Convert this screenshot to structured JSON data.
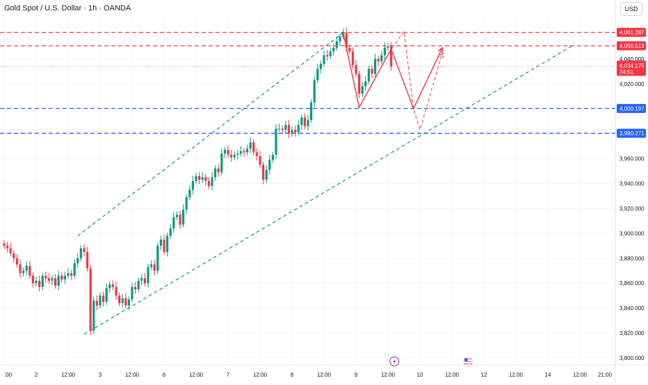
{
  "header": {
    "title": "Gold Spot / U.S. Dollar · 1h · OANDA",
    "currency": "USD"
  },
  "chart_data": {
    "type": "candlestick",
    "y_axis": {
      "range": [
        3795,
        4075
      ],
      "ticks": [
        "3,800.000",
        "3,820.000",
        "3,840.000",
        "3,860.000",
        "3,880.000",
        "3,900.000",
        "3,920.000",
        "3,940.000",
        "3,960.000",
        "3,980.000",
        "4,000.000",
        "4,020.000",
        "4,040.000"
      ],
      "tick_values": [
        3800,
        3820,
        3840,
        3860,
        3880,
        3900,
        3920,
        3940,
        3960,
        3980,
        4000,
        4020,
        4040
      ]
    },
    "x_axis": {
      "ticks": [
        ":00",
        "2",
        "12:00",
        "3",
        "12:00",
        "6",
        "12:00",
        "7",
        "12:00",
        "8",
        "12:00",
        "9",
        "12:00",
        "10",
        "12:00",
        "12",
        "12:00",
        "14",
        "12:00",
        "21:00"
      ],
      "tick_index": [
        0,
        10,
        20,
        30,
        40,
        50,
        60,
        70,
        80,
        90,
        100,
        110,
        120,
        130,
        140,
        150,
        160,
        170,
        180,
        190
      ],
      "bar_range": [
        0,
        192
      ]
    },
    "price_lines": [
      {
        "value": 4061.287,
        "label": "4,061.287",
        "color": "#f23645",
        "style": "dashed"
      },
      {
        "value": 4050.513,
        "label": "4,050.513",
        "color": "#f23645",
        "style": "dashed"
      },
      {
        "value": 4000.197,
        "label": "4,000.197",
        "color": "#2962ff",
        "style": "dashed"
      },
      {
        "value": 3980.271,
        "label": "3,980.271",
        "color": "#2962ff",
        "style": "dashed"
      }
    ],
    "current_price": {
      "value": 4034.175,
      "label": "4,034.175",
      "countdown": "34:51",
      "color": "#f23645"
    },
    "channel": {
      "color": "#089981",
      "upper": [
        [
          23,
          3898
        ],
        [
          106,
          4061
        ]
      ],
      "lower": [
        [
          25,
          3819
        ],
        [
          178,
          4051
        ]
      ]
    },
    "projection_solid": [
      [
        106,
        4061
      ],
      [
        111,
        4001
      ],
      [
        121,
        4048
      ],
      [
        128,
        4000
      ],
      [
        137,
        4049
      ]
    ],
    "projection_dashed": [
      [
        106,
        4061
      ],
      [
        111,
        4001
      ],
      [
        121,
        4048
      ],
      [
        125,
        4062
      ],
      [
        128,
        4000
      ],
      [
        130,
        3983
      ],
      [
        137,
        4045
      ]
    ],
    "event_markers": [
      {
        "name": "lightning-event",
        "x": 122
      },
      {
        "name": "us-flag-event",
        "x": 145
      }
    ],
    "bar_closes": [
      3890,
      3888,
      3884,
      3880,
      3875,
      3868,
      3870,
      3874,
      3866,
      3860,
      3862,
      3857,
      3866,
      3864,
      3862,
      3864,
      3858,
      3866,
      3863,
      3866,
      3868,
      3866,
      3876,
      3880,
      3888,
      3885,
      3872,
      3822,
      3846,
      3842,
      3850,
      3845,
      3856,
      3859,
      3857,
      3850,
      3844,
      3848,
      3842,
      3847,
      3857,
      3855,
      3862,
      3864,
      3860,
      3873,
      3875,
      3870,
      3890,
      3895,
      3885,
      3898,
      3904,
      3913,
      3915,
      3907,
      3919,
      3929,
      3935,
      3942,
      3946,
      3943,
      3945,
      3942,
      3938,
      3945,
      3952,
      3949,
      3964,
      3967,
      3963,
      3961,
      3963,
      3964,
      3966,
      3965,
      3968,
      3973,
      3965,
      3962,
      3955,
      3943,
      3951,
      3959,
      3963,
      3984,
      3984,
      3983,
      3987,
      3980,
      3983,
      3981,
      3987,
      3993,
      3986,
      3991,
      4005,
      4023,
      4032,
      4036,
      4043,
      4042,
      4046,
      4049,
      4054,
      4058,
      4061,
      4049,
      4046,
      4035,
      4028,
      4012,
      4018,
      4022,
      4032,
      4028,
      4040,
      4038,
      4043,
      4049,
      4050,
      4034
    ]
  }
}
